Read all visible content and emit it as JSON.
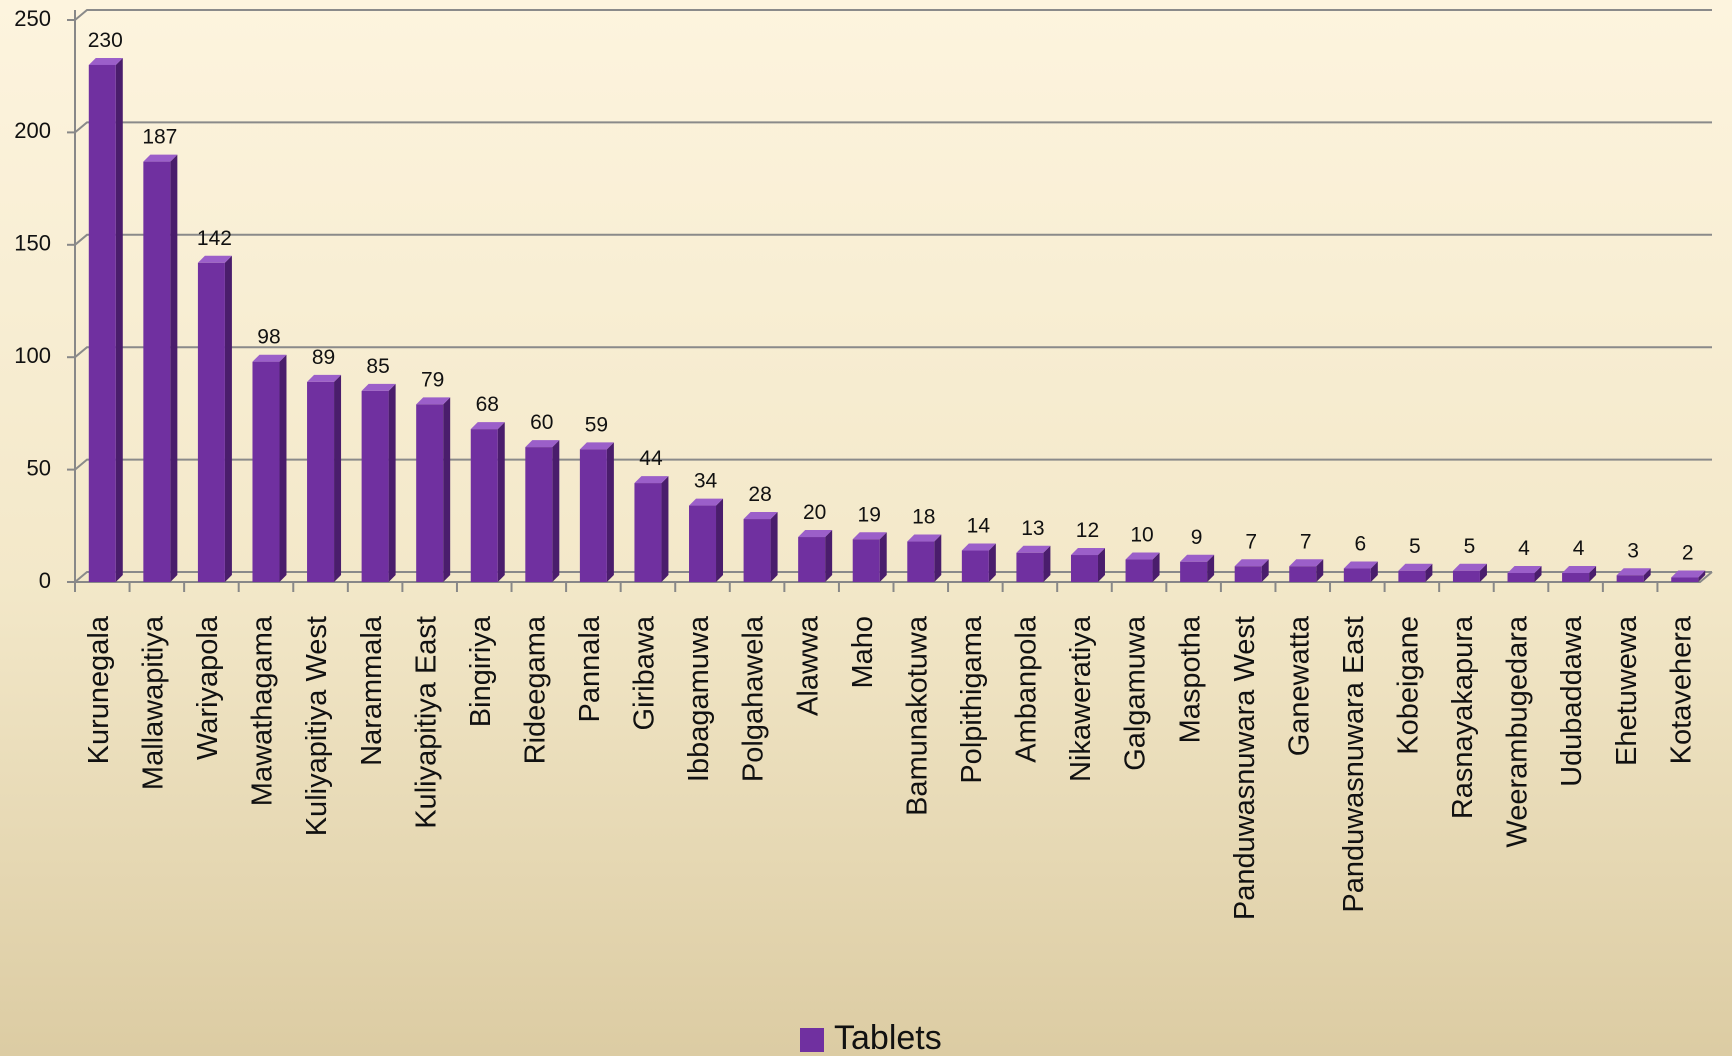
{
  "chart_data": {
    "type": "bar",
    "categories": [
      "Kurunegala",
      "Mallawapitiya",
      "Wariyapola",
      "Mawathagama",
      "Kuliyapitiya West",
      "Narammala",
      "Kuliyapitiya East",
      "Bingiriya",
      "Rideegama",
      "Pannala",
      "Giribawa",
      "Ibbagamuwa",
      "Polgahawela",
      "Alawwa",
      "Maho",
      "Bamunakotuwa",
      "Polpithigama",
      "Ambanpola",
      "Nikaweratiya",
      "Galgamuwa",
      "Maspotha",
      "Panduwasnuwara West",
      "Ganewatta",
      "Panduwasnuwara East",
      "Kobeigane",
      "Rasnayakapura",
      "Weerambugedara",
      "Udubaddawa",
      "Ehetuwewa",
      "Kotavehera"
    ],
    "series": [
      {
        "name": "Tablets",
        "color": "#7030a0",
        "values": [
          230,
          187,
          142,
          98,
          89,
          85,
          79,
          68,
          60,
          59,
          44,
          34,
          28,
          20,
          19,
          18,
          14,
          13,
          12,
          10,
          9,
          7,
          7,
          6,
          5,
          5,
          4,
          4,
          3,
          2
        ]
      }
    ],
    "ylim": [
      0,
      250
    ],
    "yticks": [
      0,
      50,
      100,
      150,
      200,
      250
    ],
    "grid": true,
    "legend": "bottom"
  }
}
